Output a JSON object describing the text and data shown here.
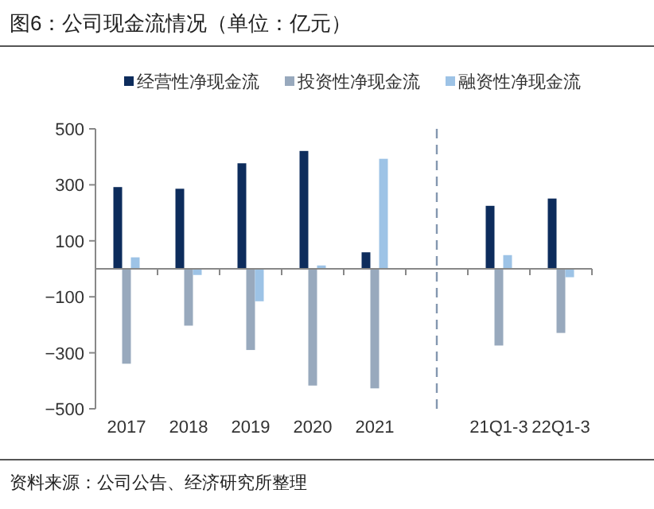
{
  "chart_data": {
    "type": "bar",
    "title": "图6：公司现金流情况（单位：亿元）",
    "categories": [
      "2017",
      "2018",
      "2019",
      "2020",
      "2021",
      null,
      "21Q1-3",
      "22Q1-3"
    ],
    "series": [
      {
        "name": "经营性净现金流",
        "color": "#0d2c5c",
        "values": [
          292,
          286,
          377,
          421,
          59,
          null,
          225,
          251
        ]
      },
      {
        "name": "投资性净现金流",
        "color": "#98a9bd",
        "values": [
          -339,
          -203,
          -290,
          -417,
          -427,
          null,
          -274,
          -229
        ]
      },
      {
        "name": "融资性净现金流",
        "color": "#9dc3e6",
        "values": [
          41,
          -22,
          -116,
          12,
          393,
          null,
          49,
          -30
        ]
      }
    ],
    "ylim": [
      -500,
      500
    ],
    "yticks": [
      -500,
      -300,
      -100,
      100,
      300,
      500
    ],
    "legend": "top",
    "grid": false,
    "annotations": [
      "资料来源：公司公告、经济研究所整理"
    ]
  }
}
